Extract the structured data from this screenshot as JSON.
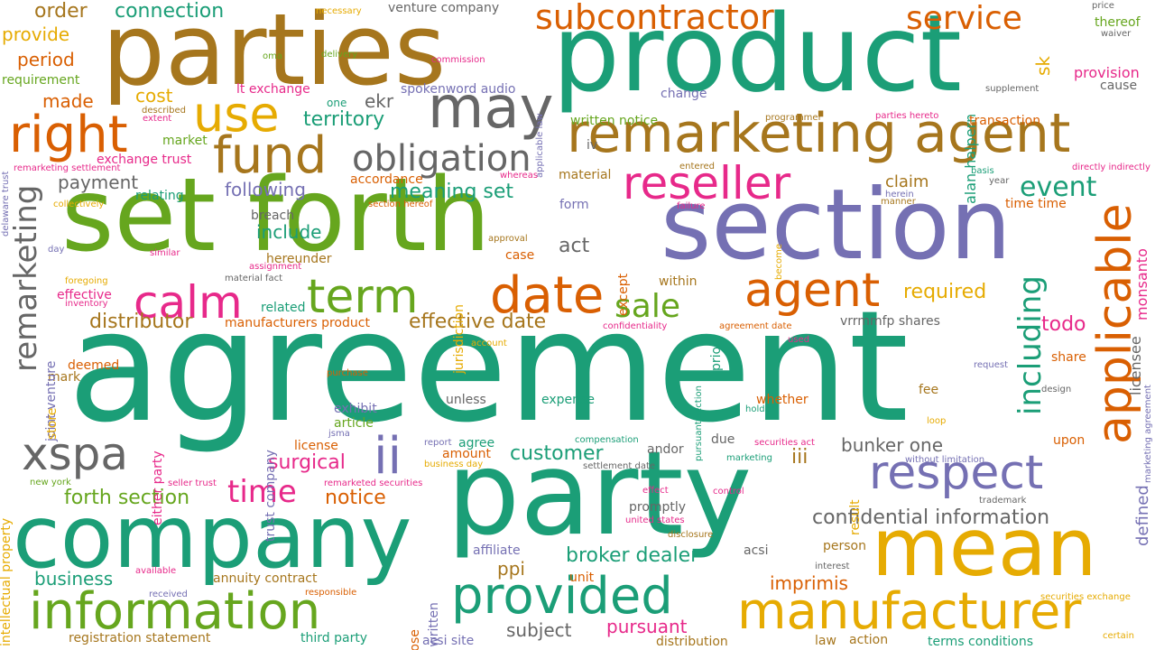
{
  "palette": {
    "green": "#1b9e77",
    "orange": "#d95f02",
    "purple": "#7570b3",
    "pink": "#e7298a",
    "lime": "#66a61e",
    "gold": "#e6ab02",
    "brown": "#a6761d",
    "gray": "#666666"
  },
  "words": [
    {
      "text": "agreement",
      "color": "green"
    },
    {
      "text": "party",
      "color": "green"
    },
    {
      "text": "product",
      "color": "green"
    },
    {
      "text": "set forth",
      "color": "lime"
    },
    {
      "text": "parties",
      "color": "brown"
    },
    {
      "text": "section",
      "color": "purple"
    },
    {
      "text": "company",
      "color": "green"
    },
    {
      "text": "mean",
      "color": "gold"
    },
    {
      "text": "remarketing agent",
      "color": "brown"
    },
    {
      "text": "manufacturer",
      "color": "gold"
    },
    {
      "text": "information",
      "color": "lime"
    },
    {
      "text": "provided",
      "color": "green"
    },
    {
      "text": "applicable",
      "color": "orange"
    },
    {
      "text": "respect",
      "color": "purple"
    },
    {
      "text": "reseller",
      "color": "pink"
    },
    {
      "text": "fund",
      "color": "brown"
    },
    {
      "text": "right",
      "color": "orange"
    },
    {
      "text": "may",
      "color": "gray"
    },
    {
      "text": "date",
      "color": "orange"
    },
    {
      "text": "agent",
      "color": "orange"
    },
    {
      "text": "subcontractor",
      "color": "orange"
    },
    {
      "text": "use",
      "color": "gold"
    },
    {
      "text": "term",
      "color": "lime"
    },
    {
      "text": "calm",
      "color": "pink"
    },
    {
      "text": "obligation",
      "color": "gray"
    },
    {
      "text": "xspa",
      "color": "gray"
    },
    {
      "text": "ii",
      "color": "purple"
    },
    {
      "text": "service",
      "color": "orange"
    },
    {
      "text": "including",
      "color": "green"
    },
    {
      "text": "remarketing",
      "color": "gray"
    },
    {
      "text": "time",
      "color": "pink"
    },
    {
      "text": "sale",
      "color": "lime"
    },
    {
      "text": "event",
      "color": "green"
    },
    {
      "text": "customer",
      "color": "green"
    },
    {
      "text": "confidential information",
      "color": "gray"
    },
    {
      "text": "surgical",
      "color": "pink"
    },
    {
      "text": "effective date",
      "color": "brown"
    },
    {
      "text": "forth section",
      "color": "lime"
    },
    {
      "text": "notice",
      "color": "orange"
    },
    {
      "text": "broker dealer",
      "color": "green"
    },
    {
      "text": "meaning set",
      "color": "green"
    },
    {
      "text": "distributor",
      "color": "brown"
    },
    {
      "text": "required",
      "color": "gold"
    },
    {
      "text": "bunker one",
      "color": "gray"
    },
    {
      "text": "imprimis",
      "color": "orange"
    },
    {
      "text": "pursuant",
      "color": "pink"
    },
    {
      "text": "subject",
      "color": "gray"
    },
    {
      "text": "business",
      "color": "green"
    },
    {
      "text": "todo",
      "color": "pink"
    },
    {
      "text": "territory",
      "color": "green"
    },
    {
      "text": "payment",
      "color": "gray"
    },
    {
      "text": "following",
      "color": "purple"
    },
    {
      "text": "include",
      "color": "green"
    },
    {
      "text": "order",
      "color": "brown"
    },
    {
      "text": "connection",
      "color": "green"
    },
    {
      "text": "provide",
      "color": "gold"
    },
    {
      "text": "period",
      "color": "orange"
    },
    {
      "text": "made",
      "color": "orange"
    },
    {
      "text": "cost",
      "color": "gold"
    },
    {
      "text": "ekr",
      "color": "gray"
    },
    {
      "text": "act",
      "color": "gray"
    },
    {
      "text": "iii",
      "color": "brown"
    },
    {
      "text": "ppi",
      "color": "brown"
    },
    {
      "text": "sk",
      "color": "gold"
    },
    {
      "text": "claim",
      "color": "brown"
    },
    {
      "text": "time time",
      "color": "orange"
    },
    {
      "text": "defined",
      "color": "purple"
    },
    {
      "text": "alan halpern",
      "color": "green"
    },
    {
      "text": "licensee",
      "color": "gray"
    },
    {
      "text": "monsanto",
      "color": "pink"
    },
    {
      "text": "provision",
      "color": "pink"
    },
    {
      "text": "transaction",
      "color": "orange"
    },
    {
      "text": "exchange trust",
      "color": "pink"
    },
    {
      "text": "accordance",
      "color": "orange"
    },
    {
      "text": "material",
      "color": "brown"
    },
    {
      "text": "form",
      "color": "purple"
    },
    {
      "text": "breach",
      "color": "gray"
    },
    {
      "text": "hereunder",
      "color": "brown"
    },
    {
      "text": "related",
      "color": "green"
    },
    {
      "text": "effective",
      "color": "pink"
    },
    {
      "text": "manufacturers product",
      "color": "orange"
    },
    {
      "text": "vrrmmfp shares",
      "color": "gray"
    },
    {
      "text": "share",
      "color": "orange"
    },
    {
      "text": "fee",
      "color": "brown"
    },
    {
      "text": "upon",
      "color": "orange"
    },
    {
      "text": "whether",
      "color": "orange"
    },
    {
      "text": "expense",
      "color": "green"
    },
    {
      "text": "unless",
      "color": "gray"
    },
    {
      "text": "exhibit",
      "color": "purple"
    },
    {
      "text": "article",
      "color": "lime"
    },
    {
      "text": "license",
      "color": "orange"
    },
    {
      "text": "amount",
      "color": "orange"
    },
    {
      "text": "agree",
      "color": "green"
    },
    {
      "text": "andor",
      "color": "gray"
    },
    {
      "text": "due",
      "color": "gray"
    },
    {
      "text": "deemed",
      "color": "orange"
    },
    {
      "text": "mark",
      "color": "brown"
    },
    {
      "text": "promptly",
      "color": "gray"
    },
    {
      "text": "affiliate",
      "color": "purple"
    },
    {
      "text": "unit",
      "color": "orange"
    },
    {
      "text": "acsi",
      "color": "gray"
    },
    {
      "text": "person",
      "color": "brown"
    },
    {
      "text": "annuity contract",
      "color": "brown"
    },
    {
      "text": "third party",
      "color": "green"
    },
    {
      "text": "registration statement",
      "color": "brown"
    },
    {
      "text": "acsi site",
      "color": "purple"
    },
    {
      "text": "distribution",
      "color": "brown"
    },
    {
      "text": "law",
      "color": "brown"
    },
    {
      "text": "action",
      "color": "brown"
    },
    {
      "text": "terms conditions",
      "color": "green"
    },
    {
      "text": "cause",
      "color": "gray"
    },
    {
      "text": "thereof",
      "color": "lime"
    },
    {
      "text": "change",
      "color": "purple"
    },
    {
      "text": "written notice",
      "color": "lime"
    },
    {
      "text": "lt exchange",
      "color": "pink"
    },
    {
      "text": "spokenword audio",
      "color": "purple"
    },
    {
      "text": "one",
      "color": "green"
    },
    {
      "text": "market",
      "color": "lime"
    },
    {
      "text": "relating",
      "color": "green"
    },
    {
      "text": "requirement",
      "color": "lime"
    },
    {
      "text": "venture company",
      "color": "gray"
    },
    {
      "text": "within",
      "color": "brown"
    },
    {
      "text": "prior",
      "color": "green"
    },
    {
      "text": "except",
      "color": "orange"
    },
    {
      "text": "jurisdiction",
      "color": "gold"
    },
    {
      "text": "case",
      "color": "orange"
    },
    {
      "text": "iv",
      "color": "gray"
    },
    {
      "text": "trust company",
      "color": "purple"
    },
    {
      "text": "either party",
      "color": "pink"
    },
    {
      "text": "joint venture",
      "color": "purple"
    },
    {
      "text": "intellectual property",
      "color": "gold"
    },
    {
      "text": "store",
      "color": "gold"
    },
    {
      "text": "prior written",
      "color": "purple"
    },
    {
      "text": "purpose",
      "color": "orange"
    },
    {
      "text": "result",
      "color": "gold"
    },
    {
      "text": "necessary",
      "color": "gold"
    },
    {
      "text": "delivery",
      "color": "lime"
    },
    {
      "text": "oma",
      "color": "lime"
    },
    {
      "text": "commission",
      "color": "pink"
    },
    {
      "text": "applicable law",
      "color": "purple"
    },
    {
      "text": "price",
      "color": "gray"
    },
    {
      "text": "waiver",
      "color": "gray"
    },
    {
      "text": "supplement",
      "color": "gray"
    },
    {
      "text": "programmer",
      "color": "brown"
    },
    {
      "text": "parties hereto",
      "color": "pink"
    },
    {
      "text": "described",
      "color": "brown"
    },
    {
      "text": "extent",
      "color": "pink"
    },
    {
      "text": "delaware trust",
      "color": "purple"
    },
    {
      "text": "remarketing settlement",
      "color": "pink"
    },
    {
      "text": "collectively",
      "color": "gold"
    },
    {
      "text": "whereas",
      "color": "pink"
    },
    {
      "text": "section hereof",
      "color": "orange"
    },
    {
      "text": "entered",
      "color": "brown"
    },
    {
      "text": "failure",
      "color": "pink"
    },
    {
      "text": "basis",
      "color": "green"
    },
    {
      "text": "year",
      "color": "gray"
    },
    {
      "text": "directly indirectly",
      "color": "pink"
    },
    {
      "text": "herein",
      "color": "purple"
    },
    {
      "text": "manner",
      "color": "brown"
    },
    {
      "text": "become",
      "color": "gold"
    },
    {
      "text": "approval",
      "color": "brown"
    },
    {
      "text": "day",
      "color": "purple"
    },
    {
      "text": "similar",
      "color": "pink"
    },
    {
      "text": "assignment",
      "color": "pink"
    },
    {
      "text": "foregoing",
      "color": "gold"
    },
    {
      "text": "material fact",
      "color": "gray"
    },
    {
      "text": "inventory",
      "color": "pink"
    },
    {
      "text": "confidentiality",
      "color": "pink"
    },
    {
      "text": "agreement date",
      "color": "orange"
    },
    {
      "text": "used",
      "color": "pink"
    },
    {
      "text": "marketing agreement",
      "color": "purple"
    },
    {
      "text": "account",
      "color": "gold"
    },
    {
      "text": "purchase",
      "color": "orange"
    },
    {
      "text": "pursuant section",
      "color": "green"
    },
    {
      "text": "request",
      "color": "purple"
    },
    {
      "text": "design",
      "color": "gray"
    },
    {
      "text": "holder",
      "color": "green"
    },
    {
      "text": "loop",
      "color": "gold"
    },
    {
      "text": "jsma",
      "color": "purple"
    },
    {
      "text": "report",
      "color": "purple"
    },
    {
      "text": "compensation",
      "color": "green"
    },
    {
      "text": "securities act",
      "color": "pink"
    },
    {
      "text": "business day",
      "color": "gold"
    },
    {
      "text": "settlement date",
      "color": "gray"
    },
    {
      "text": "marketing",
      "color": "green"
    },
    {
      "text": "without limitation",
      "color": "purple"
    },
    {
      "text": "new york",
      "color": "lime"
    },
    {
      "text": "seller trust",
      "color": "pink"
    },
    {
      "text": "remarketed securities",
      "color": "pink"
    },
    {
      "text": "effect",
      "color": "pink"
    },
    {
      "text": "control",
      "color": "pink"
    },
    {
      "text": "trademark",
      "color": "gray"
    },
    {
      "text": "united states",
      "color": "pink"
    },
    {
      "text": "disclosure",
      "color": "brown"
    },
    {
      "text": "available",
      "color": "pink"
    },
    {
      "text": "interest",
      "color": "gray"
    },
    {
      "text": "received",
      "color": "purple"
    },
    {
      "text": "responsible",
      "color": "orange"
    },
    {
      "text": "securities exchange",
      "color": "gold"
    },
    {
      "text": "certain",
      "color": "gold"
    }
  ]
}
